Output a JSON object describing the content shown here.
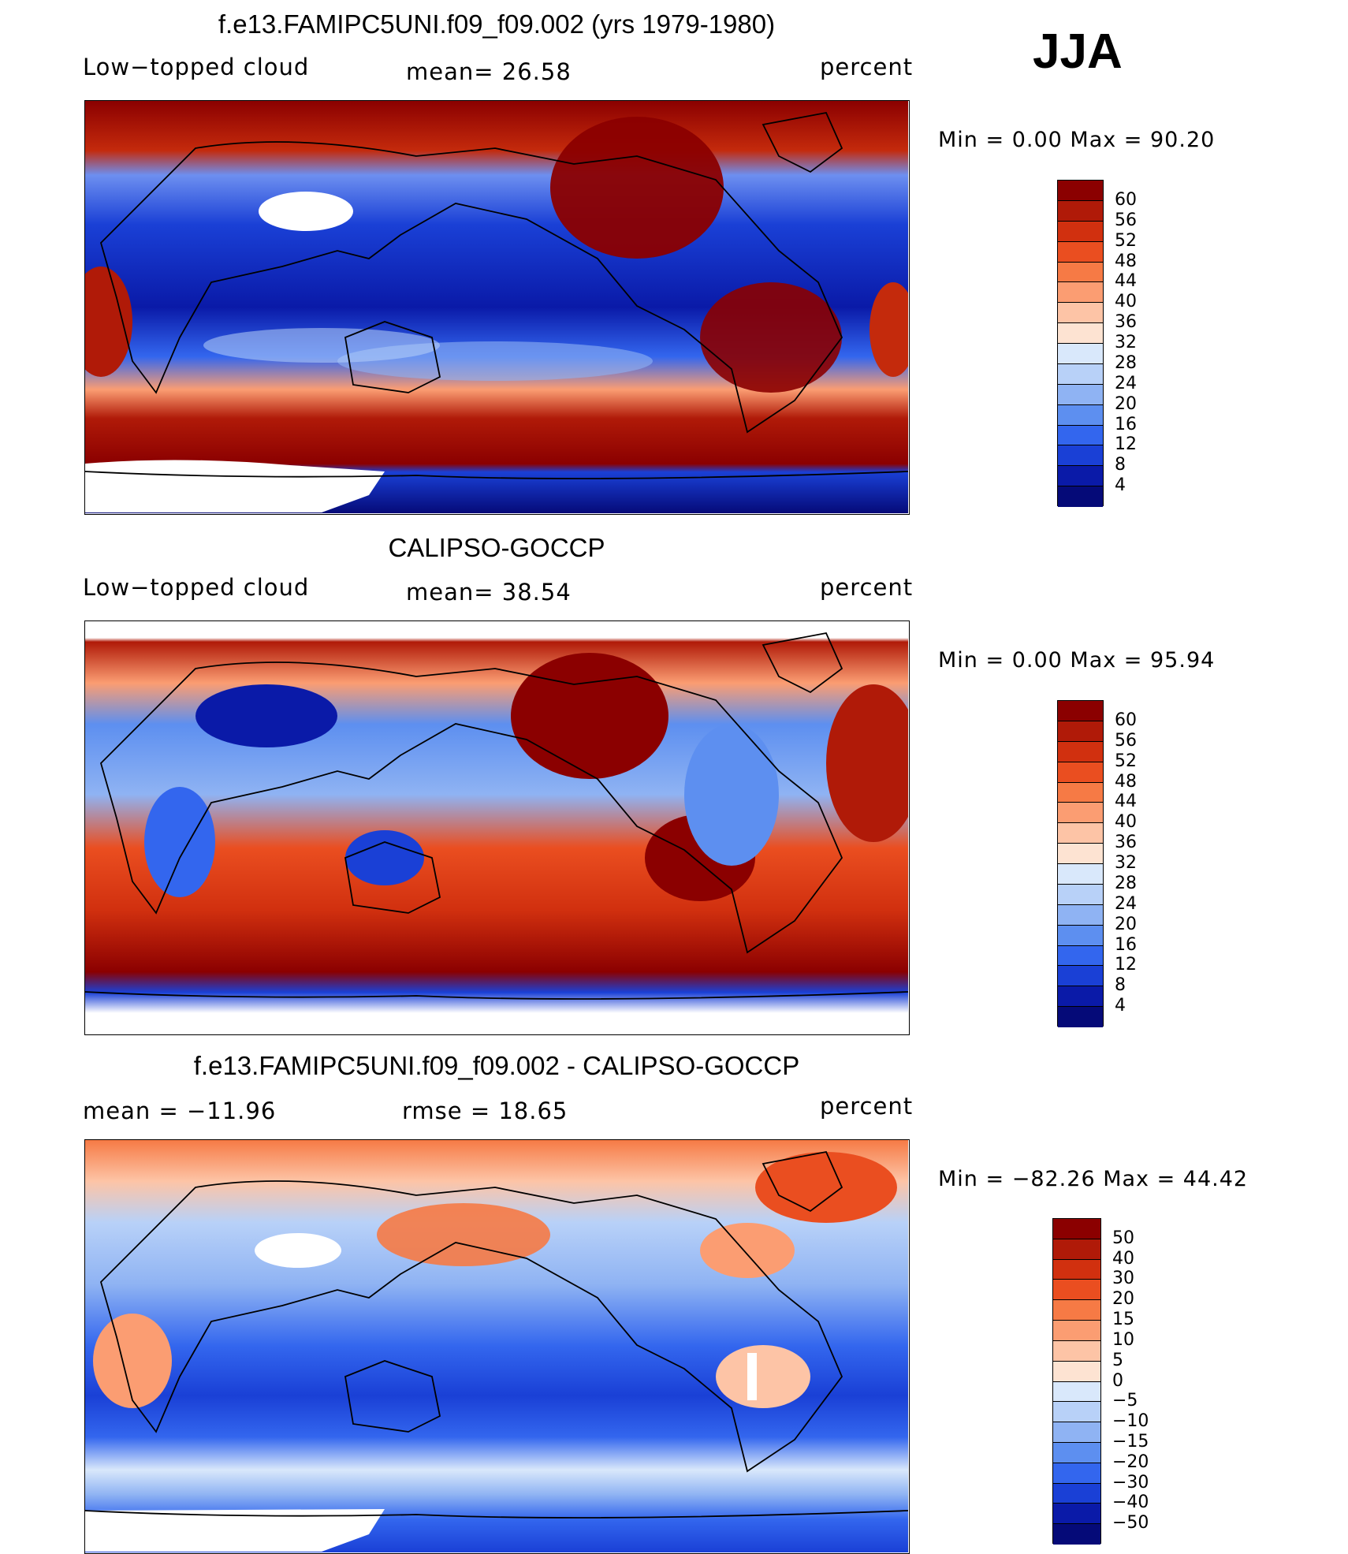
{
  "season": "JJA",
  "panels": [
    {
      "title": "f.e13.FAMIPC5UNI.f09_f09.002 (yrs 1979-1980)",
      "left_label": "Low−topped cloud",
      "center_label": "mean=   26.58",
      "right_label": "percent",
      "minmax": "Min  =     0.00  Max  =    90.20",
      "colorbar": {
        "labels": [
          "60",
          "56",
          "52",
          "48",
          "44",
          "40",
          "36",
          "32",
          "28",
          "24",
          "20",
          "16",
          "12",
          "8",
          "4"
        ],
        "colors": [
          "#8b0000",
          "#b01a08",
          "#d1300f",
          "#ea4e20",
          "#f67a45",
          "#fb9d72",
          "#fdc4a6",
          "#fde3d2",
          "#d9e8fb",
          "#b8d1f8",
          "#8fb3f3",
          "#5d8ff0",
          "#3366ee",
          "#1a40d6",
          "#0a1aa8",
          "#050a78"
        ]
      }
    },
    {
      "title": "CALIPSO-GOCCP",
      "left_label": "Low−topped cloud",
      "center_label": "mean=   38.54",
      "right_label": "percent",
      "minmax": "Min  =     0.00  Max  =    95.94",
      "colorbar": {
        "labels": [
          "60",
          "56",
          "52",
          "48",
          "44",
          "40",
          "36",
          "32",
          "28",
          "24",
          "20",
          "16",
          "12",
          "8",
          "4"
        ],
        "colors": [
          "#8b0000",
          "#b01a08",
          "#d1300f",
          "#ea4e20",
          "#f67a45",
          "#fb9d72",
          "#fdc4a6",
          "#fde3d2",
          "#d9e8fb",
          "#b8d1f8",
          "#8fb3f3",
          "#5d8ff0",
          "#3366ee",
          "#1a40d6",
          "#0a1aa8",
          "#050a78"
        ]
      }
    },
    {
      "title": "f.e13.FAMIPC5UNI.f09_f09.002 - CALIPSO-GOCCP",
      "left_label": "mean  =  −11.96",
      "center_label": "rmse  =    18.65",
      "right_label": "percent",
      "minmax": "Min  =  −82.26  Max  =    44.42",
      "colorbar": {
        "labels": [
          "50",
          "40",
          "30",
          "20",
          "15",
          "10",
          "5",
          "0",
          "−5",
          "−10",
          "−15",
          "−20",
          "−30",
          "−40",
          "−50"
        ],
        "colors": [
          "#8b0000",
          "#b01a08",
          "#d1300f",
          "#ea4e20",
          "#f67a45",
          "#fb9d72",
          "#fdc4a6",
          "#fde3d2",
          "#d9e8fb",
          "#b8d1f8",
          "#8fb3f3",
          "#5d8ff0",
          "#3366ee",
          "#1a40d6",
          "#0a1aa8",
          "#050a78"
        ]
      }
    }
  ]
}
